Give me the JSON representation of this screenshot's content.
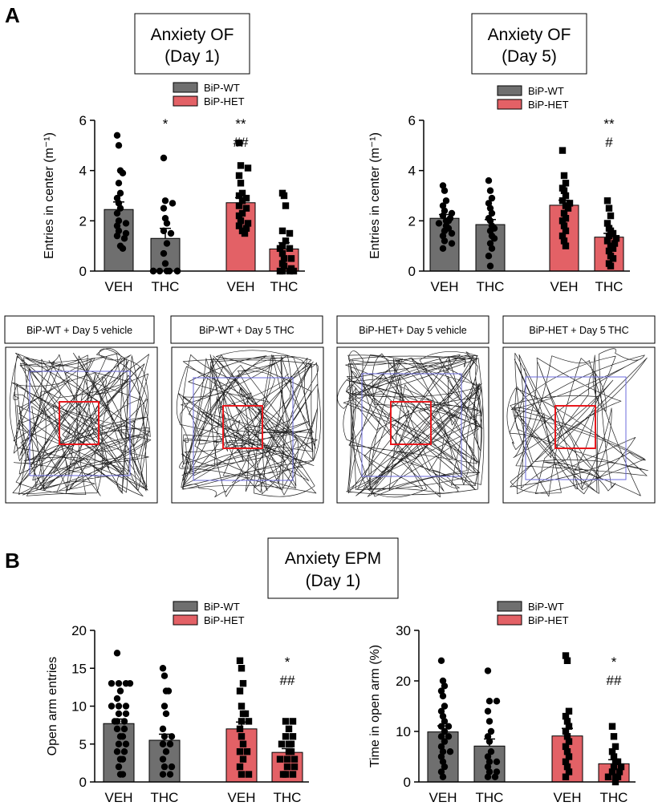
{
  "panels": {
    "A": {
      "letter": "A",
      "of_day1": {
        "title_line1": "Anxiety OF",
        "title_line2": "(Day 1)"
      },
      "of_day5": {
        "title_line1": "Anxiety OF",
        "title_line2": "(Day 5)"
      },
      "tracks": [
        {
          "label": "BiP-WT + Day 5 vehicle"
        },
        {
          "label": "BiP-WT + Day 5 THC"
        },
        {
          "label": "BiP-HET+ Day 5 vehicle"
        },
        {
          "label": "BiP-HET + Day 5 THC"
        }
      ]
    },
    "B": {
      "letter": "B",
      "title_line1": "Anxiety EPM",
      "title_line2": "(Day 1)"
    }
  },
  "colors": {
    "wt": "#6f6f6f",
    "het": "#e36166",
    "arena_center": "#e8191e",
    "arena_border": "#6b6bdc"
  },
  "chart_data": [
    {
      "type": "bar",
      "name": "of_day1",
      "ylabel": "Entries in center (m⁻¹)",
      "ylim": [
        0,
        6
      ],
      "yticks": [
        "0",
        "2",
        "4",
        "6"
      ],
      "legend": [
        "BiP-WT",
        "BiP-HET"
      ],
      "categories": [
        "VEH",
        "THC",
        "VEH",
        "THC"
      ],
      "groups": [
        "BiP-WT",
        "BiP-WT",
        "BiP-HET",
        "BiP-HET"
      ],
      "values": [
        2.45,
        1.3,
        2.72,
        0.88
      ],
      "sem": [
        0.3,
        0.4,
        0.2,
        0.25
      ],
      "annotations": [
        "",
        "*",
        "**|##",
        ""
      ],
      "points": [
        [
          5.4,
          5.0,
          4.0,
          3.9,
          3.5,
          3.1,
          2.9,
          2.7,
          2.5,
          2.3,
          2.0,
          1.9,
          1.8,
          1.6,
          1.5,
          1.4,
          1.3,
          1.0,
          0.9
        ],
        [
          4.5,
          2.8,
          2.7,
          2.5,
          2.1,
          1.9,
          1.6,
          1.5,
          1.1,
          0.7,
          0.3,
          0.0,
          0.0,
          0.0,
          0.0,
          0.0,
          0.0,
          0.0,
          0.0
        ],
        [
          5.1,
          4.2,
          4.1,
          3.8,
          3.5,
          3.1,
          3.0,
          2.9,
          2.8,
          2.6,
          2.5,
          2.3,
          2.2,
          2.0,
          1.9,
          1.8,
          1.7,
          1.6,
          1.5
        ],
        [
          3.1,
          3.0,
          2.6,
          1.6,
          1.5,
          1.2,
          1.0,
          0.9,
          0.9,
          0.7,
          0.5,
          0.5,
          0.3,
          0.2,
          0.1,
          0.0,
          0.0,
          0.0,
          0.0
        ]
      ]
    },
    {
      "type": "bar",
      "name": "of_day5",
      "ylabel": "Entries in center (m⁻¹)",
      "ylim": [
        0,
        6
      ],
      "yticks": [
        "0",
        "2",
        "4",
        "6"
      ],
      "legend": [
        "BiP-WT",
        "BiP-HET"
      ],
      "categories": [
        "VEH",
        "THC",
        "VEH",
        "THC"
      ],
      "groups": [
        "BiP-WT",
        "BiP-WT",
        "BiP-HET",
        "BiP-HET"
      ],
      "values": [
        2.1,
        1.85,
        2.62,
        1.35
      ],
      "sem": [
        0.15,
        0.2,
        0.2,
        0.15
      ],
      "annotations": [
        "",
        "",
        "",
        "**|#"
      ],
      "points": [
        [
          3.4,
          3.2,
          2.8,
          2.6,
          2.4,
          2.3,
          2.2,
          2.1,
          2.0,
          2.0,
          1.9,
          1.8,
          1.7,
          1.6,
          1.5,
          1.4,
          1.2,
          1.1,
          0.9
        ],
        [
          3.6,
          3.2,
          2.9,
          2.7,
          2.5,
          2.3,
          2.1,
          2.0,
          1.8,
          1.7,
          1.6,
          1.4,
          1.3,
          1.1,
          0.9,
          0.6,
          0.2
        ],
        [
          4.8,
          3.8,
          3.5,
          3.3,
          3.2,
          3.0,
          2.8,
          2.7,
          2.6,
          2.5,
          2.3,
          2.1,
          2.0,
          1.8,
          1.6,
          1.4,
          1.2,
          1.0
        ],
        [
          2.8,
          2.5,
          2.2,
          1.9,
          1.7,
          1.6,
          1.5,
          1.4,
          1.3,
          1.2,
          1.1,
          1.0,
          0.9,
          0.8,
          0.6,
          0.5,
          0.3,
          0.2
        ]
      ]
    },
    {
      "type": "bar",
      "name": "epm_open_arm_entries",
      "ylabel": "Open arm entries",
      "ylim": [
        0,
        20
      ],
      "yticks": [
        "0",
        "5",
        "10",
        "15",
        "20"
      ],
      "legend": [
        "BiP-WT",
        "BiP-HET"
      ],
      "categories": [
        "VEH",
        "THC",
        "VEH",
        "THC"
      ],
      "groups": [
        "BiP-WT",
        "BiP-WT",
        "BiP-HET",
        "BiP-HET"
      ],
      "values": [
        7.7,
        5.5,
        7.0,
        3.9
      ],
      "sem": [
        0.6,
        0.8,
        0.9,
        0.5
      ],
      "annotations": [
        "",
        "",
        "",
        "*|##"
      ],
      "points": [
        [
          17,
          13,
          13,
          13,
          13,
          12,
          11,
          10,
          10,
          10,
          9,
          9,
          8,
          8,
          8,
          7,
          7,
          6,
          6,
          5,
          5,
          4,
          4,
          3,
          3,
          2,
          1,
          1
        ],
        [
          15,
          14,
          12,
          12,
          10,
          9,
          7,
          6,
          6,
          5,
          5,
          4,
          3,
          2,
          2,
          1,
          1
        ],
        [
          16,
          15,
          13,
          12,
          10,
          9,
          9,
          8,
          8,
          7,
          6,
          5,
          4,
          4,
          3,
          2,
          1,
          1
        ],
        [
          8,
          8,
          7,
          6,
          6,
          5,
          5,
          5,
          4,
          4,
          3,
          3,
          3,
          2,
          2,
          1,
          1,
          1
        ]
      ]
    },
    {
      "type": "bar",
      "name": "epm_time_in_open_arm",
      "ylabel": "Time in open arm (%)",
      "ylim": [
        0,
        30
      ],
      "yticks": [
        "0",
        "10",
        "20",
        "30"
      ],
      "legend": [
        "BiP-WT",
        "BiP-HET"
      ],
      "categories": [
        "VEH",
        "THC",
        "VEH",
        "THC"
      ],
      "groups": [
        "BiP-WT",
        "BiP-WT",
        "BiP-HET",
        "BiP-HET"
      ],
      "values": [
        9.9,
        7.1,
        9.1,
        3.6
      ],
      "sem": [
        1.2,
        1.4,
        1.5,
        0.8
      ],
      "annotations": [
        "",
        "",
        "",
        "*|##"
      ],
      "points": [
        [
          24,
          20,
          19,
          18,
          17,
          15,
          14,
          13,
          12,
          11,
          11,
          10,
          9,
          9,
          8,
          7,
          6,
          6,
          5,
          4,
          3,
          2,
          1
        ],
        [
          22,
          16,
          16,
          14,
          12,
          10,
          9,
          8,
          6,
          5,
          4,
          4,
          3,
          2,
          2,
          1,
          1
        ],
        [
          25,
          24,
          14,
          13,
          12,
          11,
          10,
          9,
          8,
          7,
          6,
          5,
          4,
          3,
          2,
          1
        ],
        [
          11,
          9,
          7,
          6,
          5,
          4,
          4,
          3,
          3,
          2,
          2,
          1,
          1,
          1,
          0
        ]
      ]
    }
  ]
}
